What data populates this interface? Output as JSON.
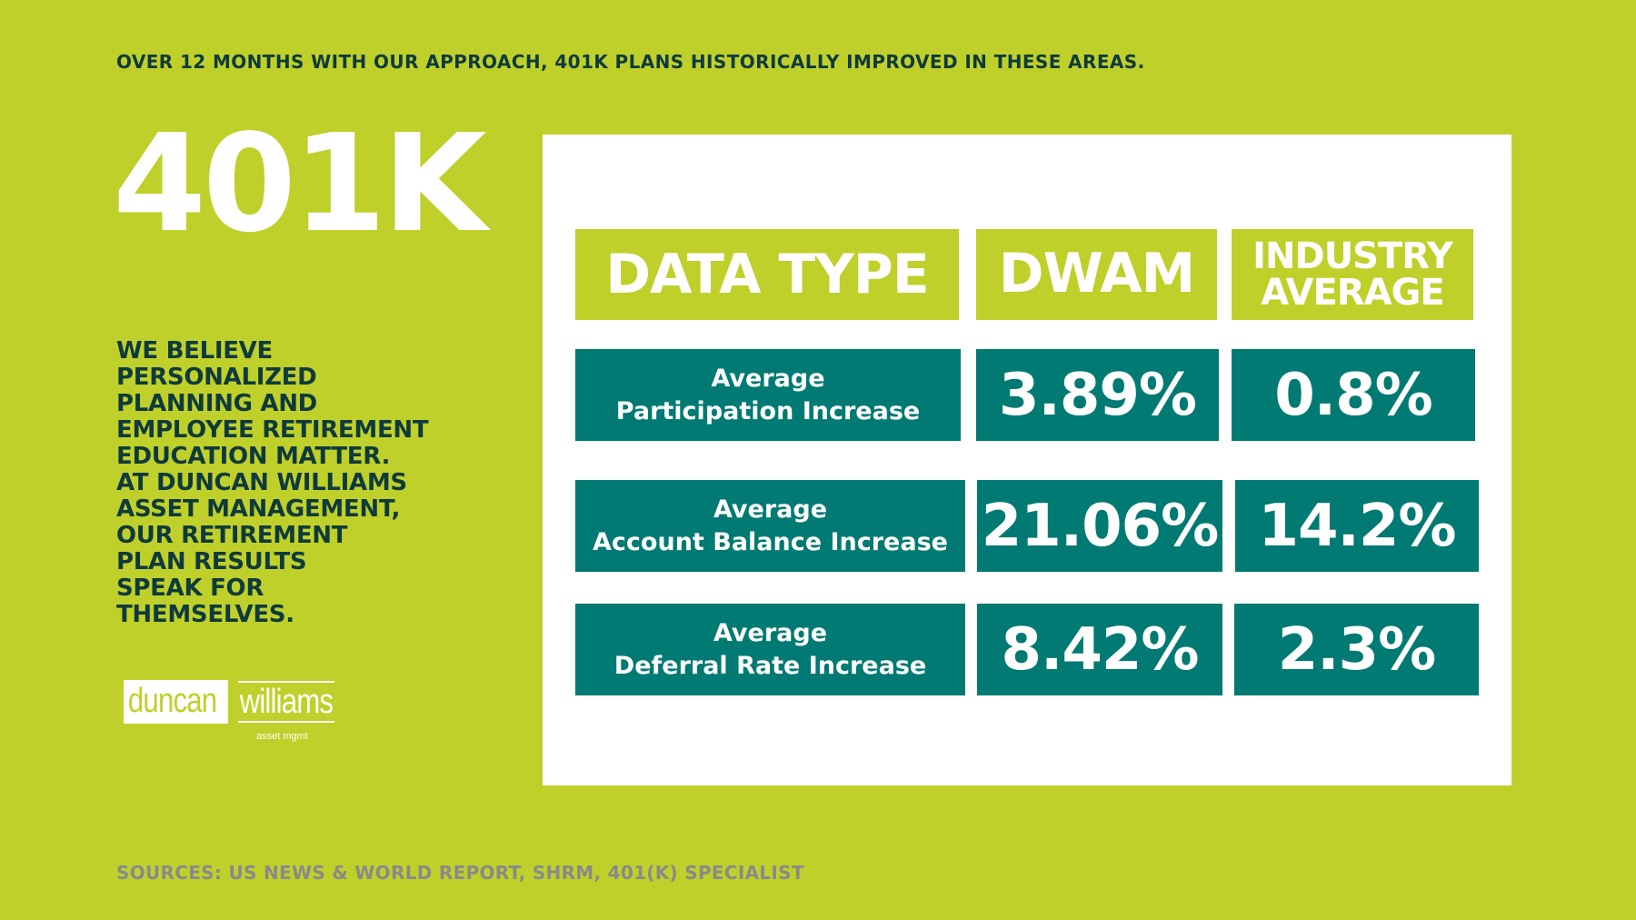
{
  "headline": "OVER 12 MONTHS WITH OUR APPROACH, 401K PLANS HISTORICALLY IMPROVED IN THESE AREAS.",
  "big_title": "401K",
  "statement_lines": [
    "WE BELIEVE",
    "PERSONALIZED",
    "PLANNING AND",
    "EMPLOYEE RETIREMENT",
    "EDUCATION MATTER.",
    "AT DUNCAN WILLIAMS",
    "ASSET MANAGEMENT,",
    "OUR RETIREMENT",
    "PLAN RESULTS",
    "SPEAK FOR",
    "THEMSELVES."
  ],
  "logo": {
    "word1": "duncan",
    "word2": "williams",
    "sub": "asset mgmt"
  },
  "sources": "SOURCES: US NEWS & WORLD REPORT, SHRM, 401(K) SPECIALIST",
  "table": {
    "headers": {
      "data_type": "DATA TYPE",
      "dwam": "DWAM",
      "industry_line1": "INDUSTRY",
      "industry_line2": "AVERAGE"
    },
    "rows": [
      {
        "label_line1": "Average",
        "label_line2": "Participation Increase",
        "dwam": "3.89%",
        "industry": "0.8%"
      },
      {
        "label_line1": "Average",
        "label_line2": "Account Balance Increase",
        "dwam": "21.06%",
        "industry": "14.2%"
      },
      {
        "label_line1": "Average",
        "label_line2": "Deferral Rate Increase",
        "dwam": "8.42%",
        "industry": "2.3%"
      }
    ]
  },
  "colors": {
    "background": "#bfd02a",
    "teal": "#007a72",
    "dark_text": "#0f3a3c",
    "sources_gray": "#8a8a8a"
  }
}
